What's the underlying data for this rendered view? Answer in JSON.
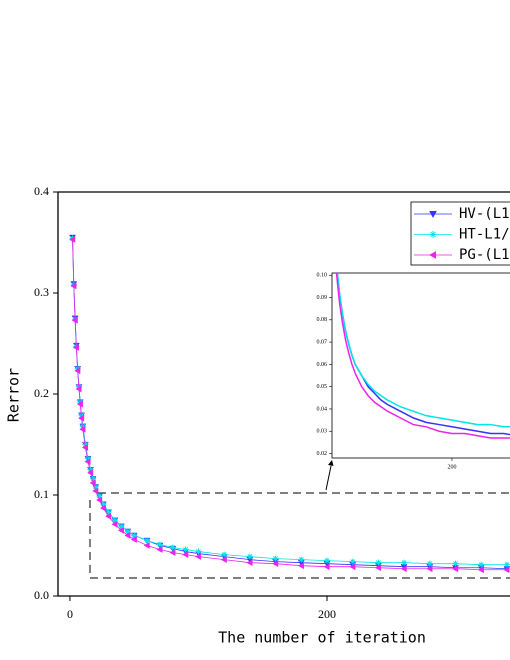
{
  "chart_data": {
    "type": "line",
    "x_label": "The number of iteration",
    "y_label": "Rerror",
    "x": [
      2,
      3,
      4,
      5,
      6,
      7,
      8,
      9,
      10,
      12,
      14,
      16,
      18,
      20,
      23,
      26,
      30,
      35,
      40,
      45,
      50,
      60,
      70,
      80,
      90,
      100,
      120,
      140,
      160,
      180,
      200,
      220,
      240,
      260,
      280,
      300,
      320,
      340
    ],
    "series": [
      {
        "name": "HV-(L1",
        "color": "#3333ff",
        "marker": "down",
        "values": [
          0.355,
          0.309,
          0.275,
          0.248,
          0.225,
          0.207,
          0.192,
          0.179,
          0.168,
          0.15,
          0.136,
          0.125,
          0.116,
          0.108,
          0.099,
          0.091,
          0.083,
          0.075,
          0.069,
          0.064,
          0.06,
          0.055,
          0.05,
          0.047,
          0.044,
          0.042,
          0.039,
          0.036,
          0.034,
          0.033,
          0.032,
          0.031,
          0.03,
          0.029,
          0.029,
          0.028,
          0.028,
          0.027
        ]
      },
      {
        "name": "HT-L1/",
        "color": "#00e5e5",
        "marker": "star",
        "values": [
          0.354,
          0.308,
          0.274,
          0.247,
          0.225,
          0.207,
          0.192,
          0.179,
          0.168,
          0.15,
          0.136,
          0.125,
          0.116,
          0.108,
          0.099,
          0.091,
          0.083,
          0.075,
          0.069,
          0.064,
          0.06,
          0.055,
          0.051,
          0.048,
          0.046,
          0.044,
          0.041,
          0.039,
          0.037,
          0.036,
          0.035,
          0.034,
          0.033,
          0.033,
          0.032,
          0.032,
          0.031,
          0.031
        ]
      },
      {
        "name": "PG-(L1",
        "color": "#ee22ee",
        "marker": "left",
        "values": [
          0.353,
          0.307,
          0.273,
          0.246,
          0.223,
          0.205,
          0.19,
          0.176,
          0.165,
          0.147,
          0.133,
          0.122,
          0.112,
          0.104,
          0.095,
          0.087,
          0.079,
          0.071,
          0.065,
          0.06,
          0.056,
          0.05,
          0.046,
          0.043,
          0.041,
          0.039,
          0.036,
          0.033,
          0.032,
          0.03,
          0.029,
          0.029,
          0.028,
          0.027,
          0.027,
          0.027,
          0.026,
          0.026
        ]
      }
    ],
    "xlim": [
      -9.3,
      342.4
    ],
    "ylim": [
      0,
      0.4
    ],
    "xticks": [
      0,
      200
    ],
    "yticks": [
      {
        "value": 0,
        "label": "0.0"
      },
      0.1,
      0.2,
      0.3,
      0.4
    ],
    "inset": {
      "xlim": [
        14,
        290
      ],
      "ylim": [
        0.018,
        0.101
      ],
      "xticks": [
        200
      ],
      "yticks": [
        0.02,
        0.03,
        0.04,
        0.05,
        0.06,
        0.07,
        0.08,
        0.09,
        {
          "value": 0.1,
          "label": "0.10"
        }
      ]
    }
  }
}
